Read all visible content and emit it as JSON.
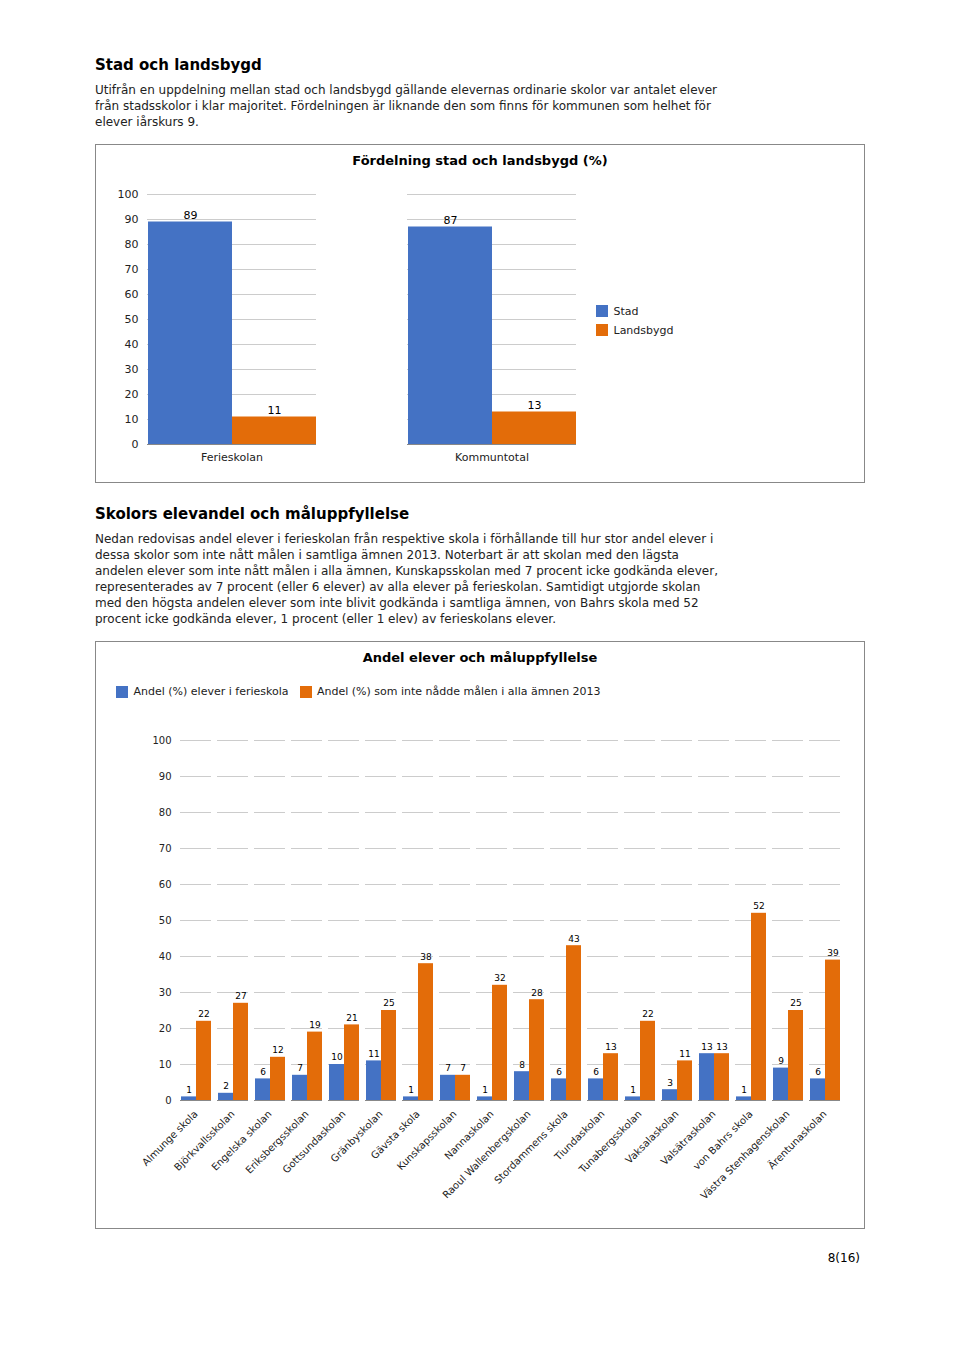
{
  "page": {
    "sections": [
      {
        "title": "Stad och landsbygd",
        "lines": [
          "Utifrån en uppdelning mellan stad och landsbygd gällande elevernas ordinarie skolor var antalet elever",
          "från stadsskolor i klar majoritet. Fördelningen är liknande den som finns för kommunen som helhet för",
          "elever iårskurs 9."
        ]
      },
      {
        "title": "Skolors elevandel och måluppfyllelse",
        "lines": [
          "Nedan redovisas andel elever i ferieskolan från respektive skola i förhållande till hur stor andel elever i",
          "dessa skolor som inte nått målen i samtliga ämnen 2013. Noterbart är att skolan med den lägsta",
          "andelen elever som inte nått målen i alla ämnen, Kunskapsskolan med 7 procent icke godkända elever,",
          "representerades av 7 procent (eller 6 elever) av alla elever på ferieskolan. Samtidigt utgjorde skolan",
          "med den högsta andelen elever som inte blivit godkända i samtliga ämnen, von Bahrs skola med 52",
          "procent icke godkända elever, 1 procent (eller 1 elev) av ferieskolans elever."
        ]
      }
    ],
    "footer": "8(16)"
  },
  "chart_data": [
    {
      "type": "bar",
      "title": "Fördelning stad och landsbygd (%)",
      "categories": [
        "Ferieskolan",
        "Kommuntotal"
      ],
      "series": [
        {
          "name": "Stad",
          "color": "#4472C4",
          "values": [
            89,
            87
          ]
        },
        {
          "name": "Landsbygd",
          "color": "#E36C09",
          "values": [
            11,
            13
          ]
        }
      ],
      "ylim": [
        0,
        100
      ],
      "yticks": [
        0,
        10,
        20,
        30,
        40,
        50,
        60,
        70,
        80,
        90,
        100
      ],
      "grid": true,
      "data_labels": true,
      "legend": "right"
    },
    {
      "type": "bar",
      "title": "Andel elever och måluppfyllelse",
      "categories": [
        "Almunge skola",
        "Björkvallsskolan",
        "Engelska skolan",
        "Eriksbergsskolan",
        "Gottsundaskolan",
        "Gränbyskolan",
        "Gävsta skola",
        "Kunskapsskolan",
        "Nannaskolan",
        "Raoul Wallenbergskolan",
        "Stordammens skola",
        "Tiundaskolan",
        "Tunabergsskolan",
        "Vaksalaskolan",
        "Valsätraskolan",
        "von Bahrs skola",
        "Västra Stenhagenskolan",
        "Ärentunaskolan"
      ],
      "series": [
        {
          "name": "Andel (%) elever i ferieskola",
          "color": "#4472C4",
          "values": [
            1,
            2,
            6,
            7,
            10,
            11,
            1,
            7,
            1,
            8,
            6,
            6,
            1,
            3,
            13,
            1,
            9,
            6
          ]
        },
        {
          "name": "Andel (%) som inte nådde målen i alla ämnen 2013",
          "color": "#E36C09",
          "values": [
            22,
            27,
            12,
            19,
            21,
            25,
            38,
            7,
            32,
            28,
            43,
            13,
            22,
            11,
            13,
            52,
            25,
            39
          ]
        }
      ],
      "ylim": [
        0,
        100
      ],
      "yticks": [
        0,
        10,
        20,
        30,
        40,
        50,
        60,
        70,
        80,
        90,
        100
      ],
      "grid": true,
      "data_labels": true,
      "legend": "top"
    }
  ]
}
